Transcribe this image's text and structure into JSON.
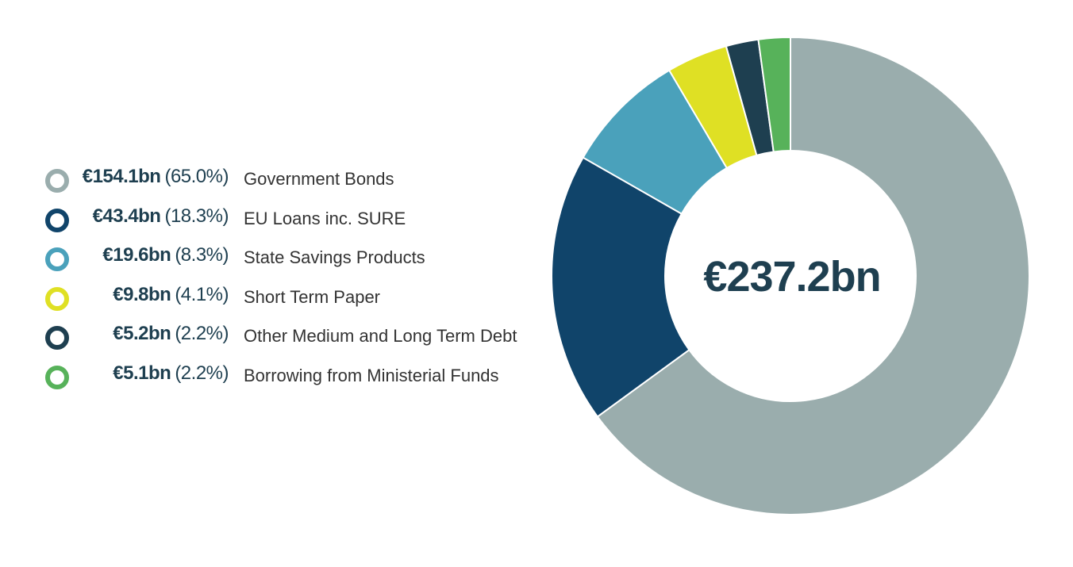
{
  "chart_data": {
    "type": "pie",
    "donut": true,
    "center_label": "€237.2bn",
    "legend_placement": "left",
    "slices": [
      {
        "value": 154.1,
        "value_label": "€154.1bn",
        "percent_label": "(65.0%)",
        "name": "Government Bonds",
        "color": "#9aadad"
      },
      {
        "value": 43.4,
        "value_label": "€43.4bn",
        "percent_label": "(18.3%)",
        "name": "EU Loans inc. SURE",
        "color": "#10446a"
      },
      {
        "value": 19.6,
        "value_label": "€19.6bn",
        "percent_label": "(8.3%)",
        "name": "State Savings Products",
        "color": "#4aa1bb"
      },
      {
        "value": 9.8,
        "value_label": "€9.8bn",
        "percent_label": "(4.1%)",
        "name": "Short Term Paper",
        "color": "#dfe024"
      },
      {
        "value": 5.2,
        "value_label": "€5.2bn",
        "percent_label": "(2.2%)",
        "name": "Other Medium and Long Term Debt",
        "color": "#1e3f50"
      },
      {
        "value": 5.1,
        "value_label": "€5.1bn",
        "percent_label": "(2.2%)",
        "name": "Borrowing from Ministerial Funds",
        "color": "#57b25a"
      }
    ]
  }
}
